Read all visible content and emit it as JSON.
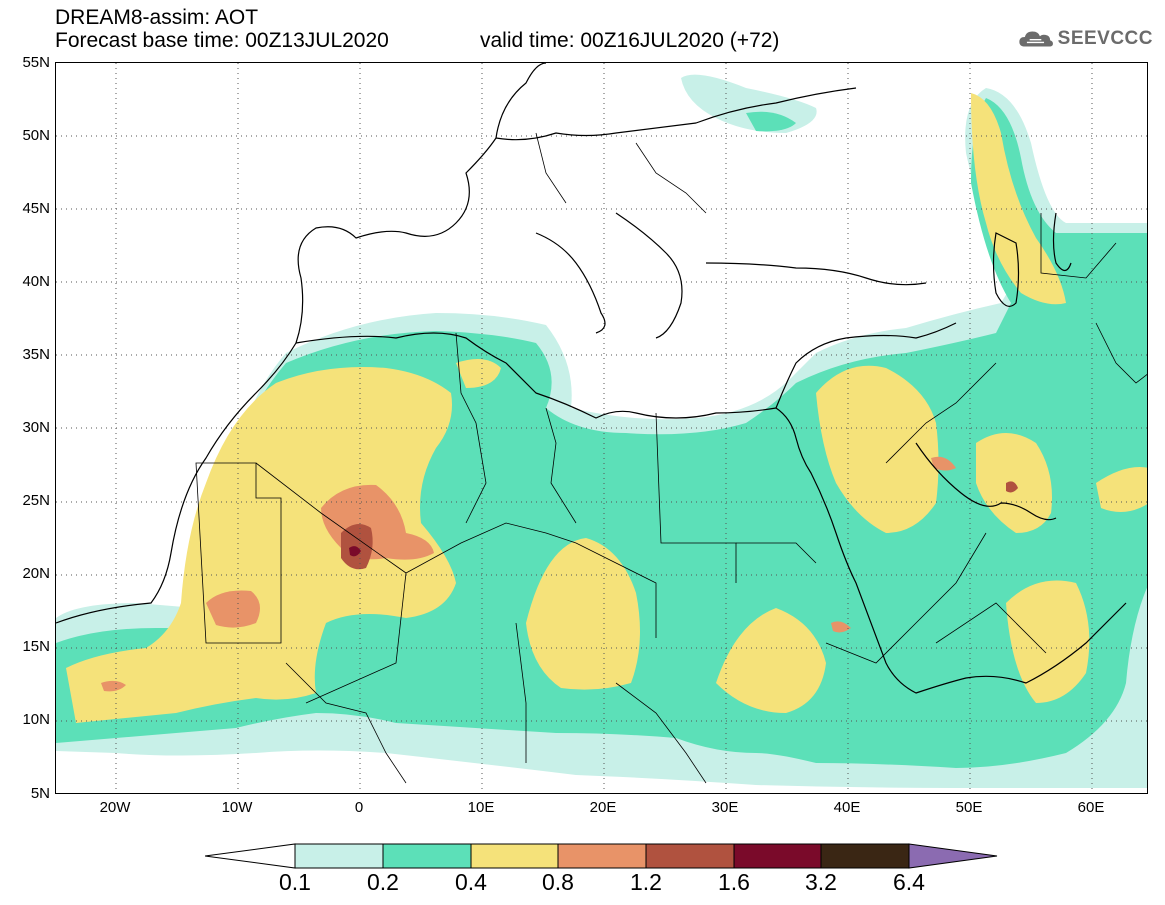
{
  "header": {
    "title": "DREAM8-assim: AOT",
    "base_time": "Forecast base time: 00Z13JUL2020",
    "valid_time": "valid time: 00Z16JUL2020 (+72)"
  },
  "logo": {
    "icon": "cloud-icon",
    "text": "SEEVCCC"
  },
  "map": {
    "lat_labels": [
      "55N",
      "50N",
      "45N",
      "40N",
      "35N",
      "30N",
      "25N",
      "20N",
      "15N",
      "10N",
      "5N"
    ],
    "lon_labels": [
      "20W",
      "10W",
      "0",
      "10E",
      "20E",
      "30E",
      "40E",
      "50E",
      "60E"
    ],
    "lat_range": [
      5,
      55
    ],
    "lon_range": [
      -25,
      65
    ],
    "grid": "dotted"
  },
  "colorbar": {
    "labels": [
      "0.1",
      "0.2",
      "0.4",
      "0.8",
      "1.2",
      "1.6",
      "3.2",
      "6.4"
    ],
    "colors": [
      "#ffffff",
      "#c8f0e8",
      "#5ce0b8",
      "#f5e27a",
      "#e89368",
      "#b0523f",
      "#7a0a2a",
      "#3a2614",
      "#8b6bb1"
    ]
  }
}
